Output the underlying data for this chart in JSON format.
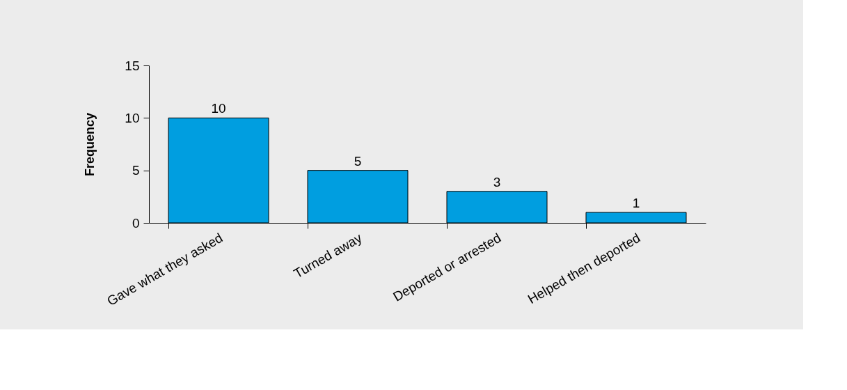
{
  "chart_data": {
    "type": "bar",
    "ylabel": "Frequency",
    "categories": [
      "Gave what they asked",
      "Turned away",
      "Deported or arrested",
      "Helped then deported"
    ],
    "values": [
      10,
      5,
      3,
      1
    ],
    "color": "#009ee0",
    "ylim": [
      0,
      15
    ],
    "yticks": [
      0,
      5,
      10,
      15
    ],
    "grid": false,
    "data_labels": true
  }
}
